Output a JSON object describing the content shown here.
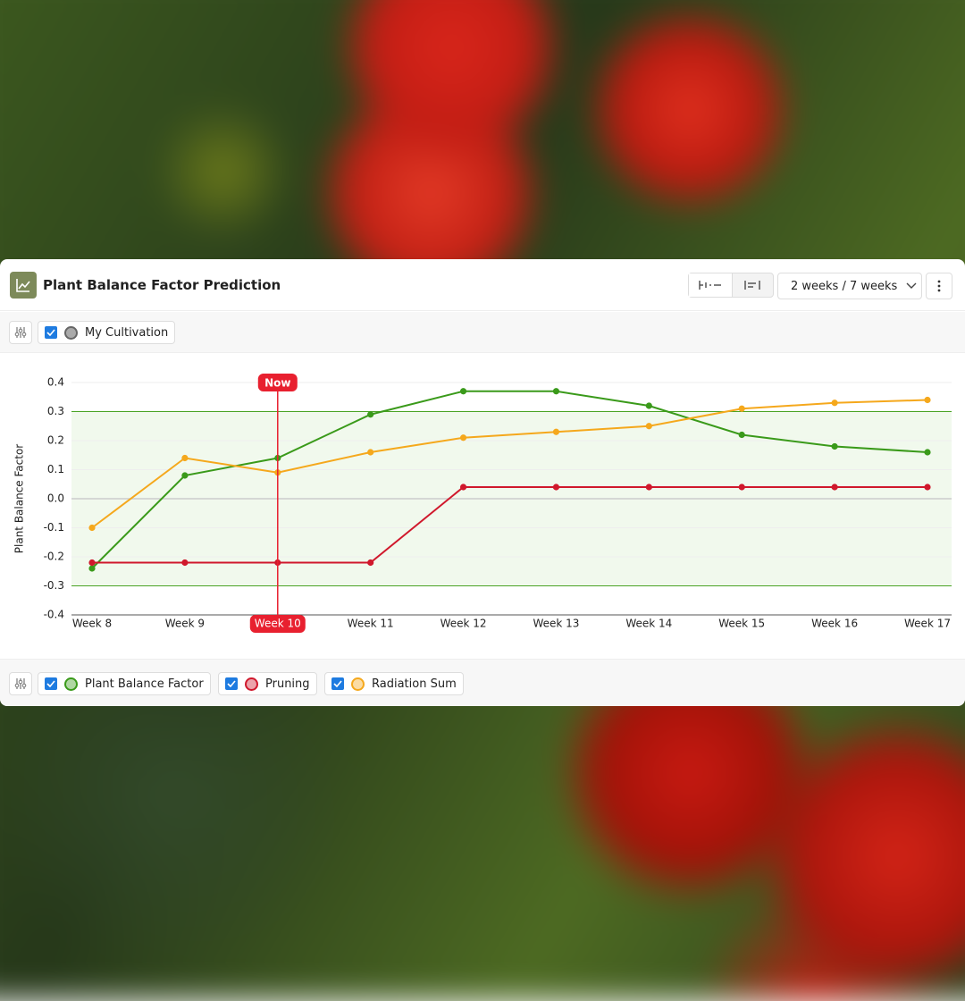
{
  "header": {
    "title": "Plant Balance Factor Prediction",
    "range_button": "2 weeks / 7 weeks"
  },
  "filters": {
    "cultivation": "My Cultivation"
  },
  "chart_data": {
    "type": "line",
    "y_label": "Plant Balance Factor",
    "categories": [
      "Week 8",
      "Week 9",
      "Week 10",
      "Week 11",
      "Week 12",
      "Week 13",
      "Week 14",
      "Week 15",
      "Week 16",
      "Week 17"
    ],
    "now": {
      "label": "Now",
      "category": "Week 10"
    },
    "target_range": [
      -0.3,
      0.3
    ],
    "ylim": [
      -0.4,
      0.4
    ],
    "yticks": [
      0.4,
      0.3,
      0.2,
      0.1,
      {
        "value": 0,
        "label": "0.0"
      },
      -0.1,
      -0.2,
      -0.3,
      -0.4
    ],
    "grid": true,
    "series": [
      {
        "name": "Plant Balance Factor",
        "color": "#3a9a1a",
        "values": [
          -0.24,
          0.08,
          0.14,
          0.29,
          0.37,
          0.37,
          0.32,
          0.22,
          0.18,
          0.16
        ]
      },
      {
        "name": "Pruning",
        "color": "#d0182c",
        "values": [
          -0.22,
          -0.22,
          -0.22,
          -0.22,
          0.04,
          0.04,
          0.04,
          0.04,
          0.04,
          0.04
        ]
      },
      {
        "name": "Radiation Sum",
        "color": "#f5a81c",
        "values": [
          -0.1,
          0.14,
          0.09,
          0.16,
          0.21,
          0.23,
          0.25,
          0.31,
          0.33,
          0.34
        ]
      }
    ]
  }
}
